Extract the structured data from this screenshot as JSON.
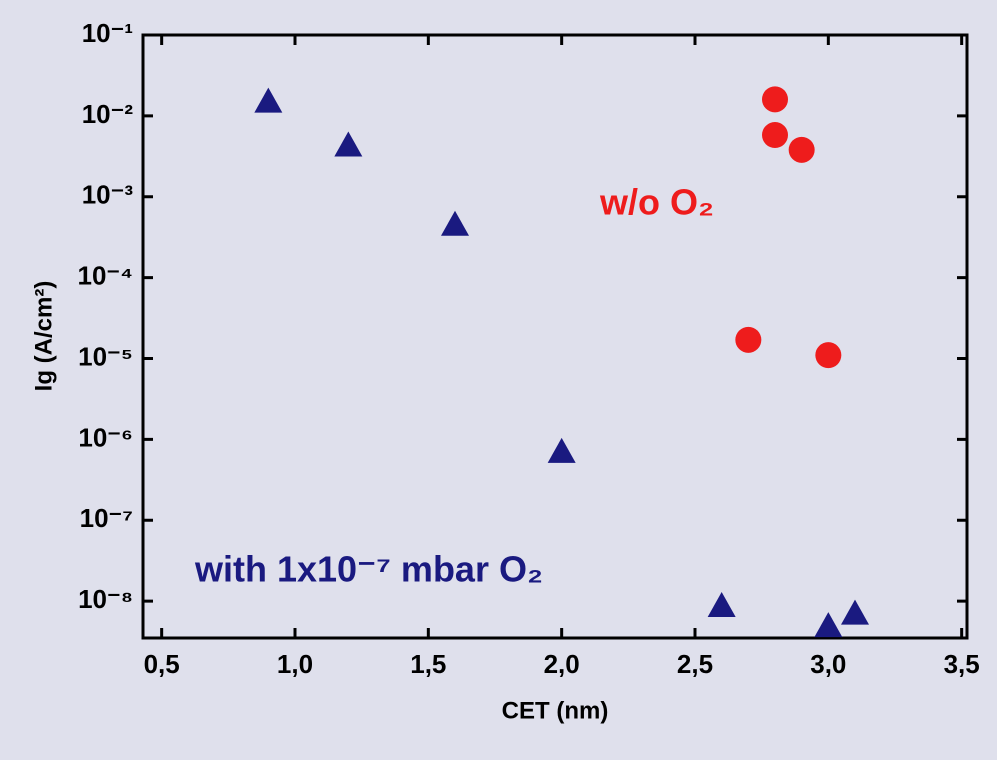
{
  "chart_data": {
    "type": "scatter",
    "x_label": "CET (nm)",
    "y_label": "Ig (A/cm²)",
    "xlim": [
      0.43,
      3.52
    ],
    "xticks": [
      {
        "value": 0.5,
        "label": "0,5"
      },
      {
        "value": 1.0,
        "label": "1,0"
      },
      {
        "value": 1.5,
        "label": "1,5"
      },
      {
        "value": 2.0,
        "label": "2,0"
      },
      {
        "value": 2.5,
        "label": "2,5"
      },
      {
        "value": 3.0,
        "label": "3,0"
      },
      {
        "value": 3.5,
        "label": "3,5"
      }
    ],
    "ylim": [
      3.5e-09,
      0.1
    ],
    "log_y": true,
    "yticks": [
      {
        "value": 0.1,
        "label": "10⁻¹"
      },
      {
        "value": 0.01,
        "label": "10⁻²"
      },
      {
        "value": 0.001,
        "label": "10⁻³"
      },
      {
        "value": 0.0001,
        "label": "10⁻⁴"
      },
      {
        "value": 1e-05,
        "label": "10⁻⁵"
      },
      {
        "value": 1e-06,
        "label": "10⁻⁶"
      },
      {
        "value": 1e-07,
        "label": "10⁻⁷"
      },
      {
        "value": 1e-08,
        "label": "10⁻⁸"
      }
    ],
    "series": [
      {
        "name": "with 1x10⁻⁷ mbar O₂",
        "color": "#1a1a80",
        "marker": "triangle",
        "x": [
          0.9,
          1.2,
          1.6,
          2.0,
          2.6,
          3.0,
          3.1
        ],
        "values": [
          0.015,
          0.0043,
          0.00045,
          7e-07,
          8.7e-09,
          4.9e-09,
          7e-09
        ]
      },
      {
        "name": "w/o  O₂",
        "color": "#ee1c1c",
        "marker": "circle",
        "x": [
          2.8,
          2.8,
          2.9,
          2.7,
          3.0
        ],
        "values": [
          0.016,
          0.0058,
          0.0038,
          1.7e-05,
          1.1e-05
        ]
      }
    ]
  }
}
